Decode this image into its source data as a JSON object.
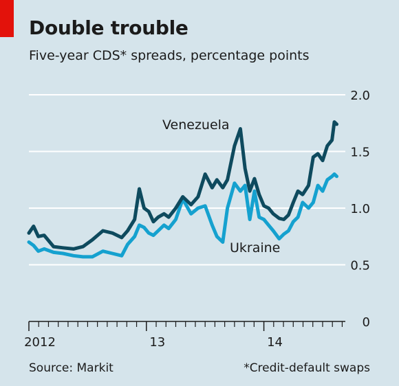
{
  "header": {
    "title": "Double trouble",
    "subtitle": "Five-year CDS* spreads, percentage points"
  },
  "footer": {
    "source": "Source: Markit",
    "note": "*Credit-default swaps"
  },
  "colors": {
    "venezuela": "#0e4a5e",
    "ukraine": "#15a1cf",
    "background": "#d5e4eb",
    "accent": "#e3120b"
  },
  "chart_data": {
    "type": "line",
    "title": "Double trouble",
    "subtitle": "Five-year CDS* spreads, percentage points",
    "x_axis": {
      "range": [
        2012.0,
        2014.67
      ],
      "tick_labels": [
        {
          "label": "2012",
          "x": 2012.0
        },
        {
          "label": "13",
          "x": 2013.0
        },
        {
          "label": "14",
          "x": 2014.0
        }
      ]
    },
    "y_axis": {
      "range": [
        0,
        2.0
      ],
      "ticks": [
        {
          "label": "0",
          "value": 0
        },
        {
          "label": "0.5",
          "value": 0.5
        },
        {
          "label": "1.0",
          "value": 1.0
        },
        {
          "label": "1.5",
          "value": 1.5
        },
        {
          "label": "2.0",
          "value": 2.0
        }
      ],
      "position": "right",
      "grid": true
    },
    "series": [
      {
        "name": "Venezuela",
        "color": "#0e4a5e",
        "x": [
          2012.0,
          2012.04,
          2012.08,
          2012.13,
          2012.21,
          2012.29,
          2012.38,
          2012.46,
          2012.54,
          2012.63,
          2012.71,
          2012.79,
          2012.84,
          2012.9,
          2012.94,
          2012.98,
          2013.02,
          2013.06,
          2013.1,
          2013.15,
          2013.19,
          2013.25,
          2013.31,
          2013.38,
          2013.44,
          2013.5,
          2013.56,
          2013.6,
          2013.65,
          2013.69,
          2013.75,
          2013.8,
          2013.84,
          2013.88,
          2013.92,
          2013.96,
          2014.0,
          2014.04,
          2014.08,
          2014.13,
          2014.17,
          2014.21,
          2014.25,
          2014.29,
          2014.33,
          2014.38,
          2014.42,
          2014.46,
          2014.5,
          2014.54,
          2014.58,
          2014.6,
          2014.62
        ],
        "values": [
          0.78,
          0.84,
          0.75,
          0.76,
          0.66,
          0.65,
          0.64,
          0.66,
          0.72,
          0.8,
          0.78,
          0.74,
          0.8,
          0.9,
          1.17,
          1.0,
          0.97,
          0.88,
          0.92,
          0.95,
          0.92,
          1.0,
          1.1,
          1.03,
          1.1,
          1.3,
          1.18,
          1.25,
          1.18,
          1.25,
          1.55,
          1.7,
          1.35,
          1.15,
          1.26,
          1.12,
          1.02,
          1.0,
          0.95,
          0.91,
          0.9,
          0.94,
          1.05,
          1.15,
          1.12,
          1.2,
          1.45,
          1.48,
          1.42,
          1.55,
          1.6,
          1.76,
          1.74
        ]
      },
      {
        "name": "Ukraine",
        "color": "#15a1cf",
        "x": [
          2012.0,
          2012.04,
          2012.08,
          2012.13,
          2012.21,
          2012.29,
          2012.38,
          2012.46,
          2012.54,
          2012.63,
          2012.71,
          2012.79,
          2012.84,
          2012.9,
          2012.94,
          2012.98,
          2013.02,
          2013.06,
          2013.1,
          2013.15,
          2013.19,
          2013.25,
          2013.31,
          2013.38,
          2013.44,
          2013.5,
          2013.56,
          2013.6,
          2013.65,
          2013.69,
          2013.75,
          2013.8,
          2013.84,
          2013.88,
          2013.92,
          2013.96,
          2014.0,
          2014.04,
          2014.08,
          2014.13,
          2014.17,
          2014.21,
          2014.25,
          2014.29,
          2014.33,
          2014.38,
          2014.42,
          2014.46,
          2014.5,
          2014.54,
          2014.58,
          2014.6,
          2014.62
        ],
        "values": [
          0.7,
          0.67,
          0.62,
          0.64,
          0.61,
          0.6,
          0.58,
          0.57,
          0.57,
          0.62,
          0.6,
          0.58,
          0.68,
          0.75,
          0.85,
          0.83,
          0.78,
          0.76,
          0.8,
          0.85,
          0.82,
          0.9,
          1.08,
          0.95,
          1.0,
          1.02,
          0.85,
          0.75,
          0.7,
          1.0,
          1.22,
          1.15,
          1.2,
          0.9,
          1.15,
          0.92,
          0.9,
          0.85,
          0.8,
          0.73,
          0.77,
          0.8,
          0.88,
          0.92,
          1.05,
          1.0,
          1.05,
          1.2,
          1.15,
          1.25,
          1.28,
          1.3,
          1.28
        ]
      }
    ],
    "annotations": [
      {
        "text": "Venezuela",
        "series": "Venezuela"
      },
      {
        "text": "Ukraine",
        "series": "Ukraine"
      }
    ]
  }
}
